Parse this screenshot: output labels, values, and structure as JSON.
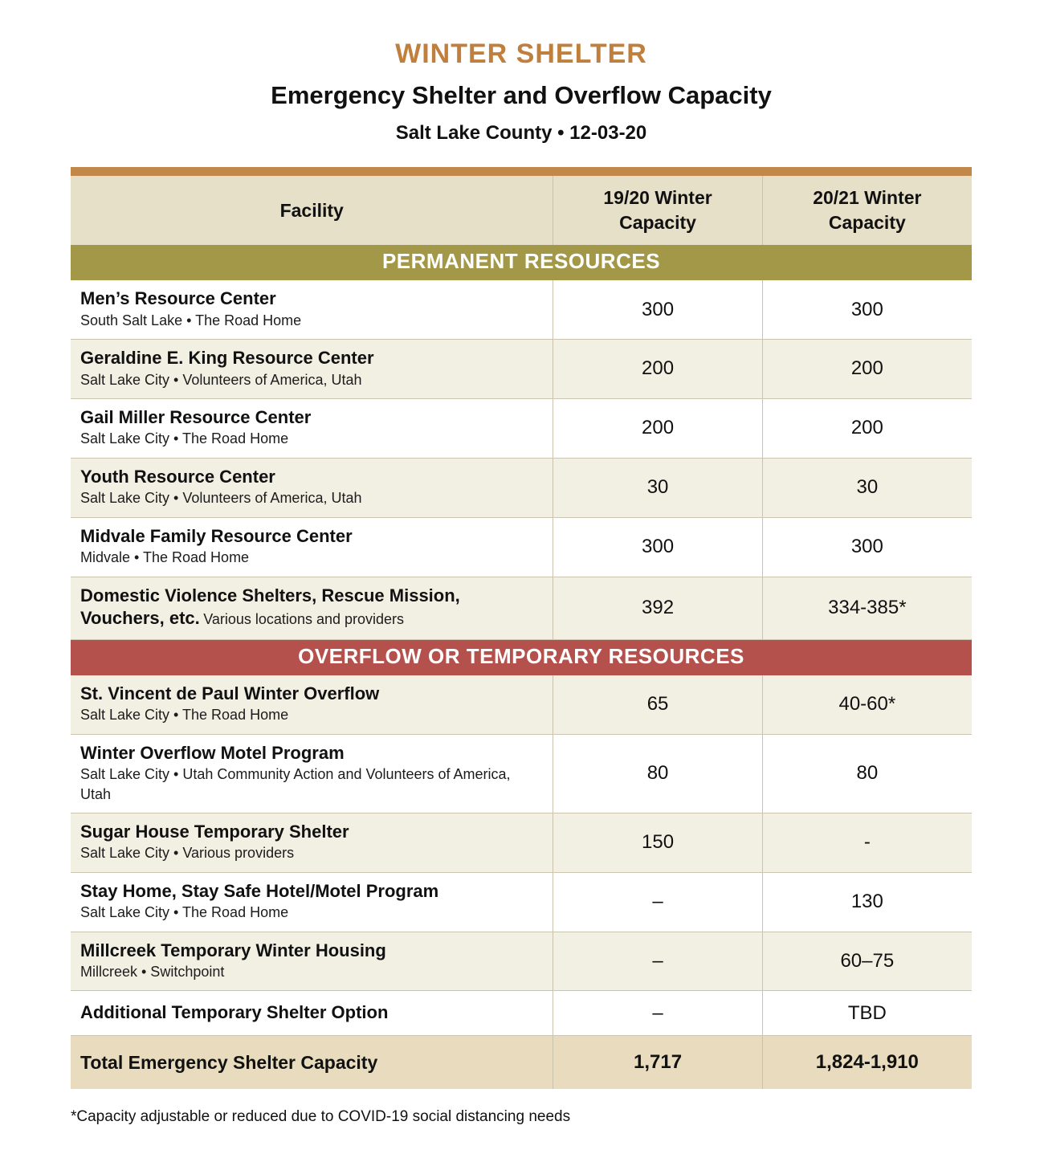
{
  "header": {
    "title": "WINTER SHELTER",
    "subtitle": "Emergency Shelter and Overflow Capacity",
    "date_line": "Salt Lake County  •  12-03-20"
  },
  "colors": {
    "accent_bar": "#c2884a",
    "title": "#c07f3d",
    "permanent_section": "#a29847",
    "overflow_section": "#b5514d",
    "header_beige": "#e7e0c9",
    "total_tan": "#e9dcbe"
  },
  "table": {
    "columns": [
      "Facility",
      "19/20 Winter Capacity",
      "20/21 Winter Capacity"
    ],
    "sections": [
      {
        "label": "PERMANENT RESOURCES",
        "color": "#a29847",
        "rows": [
          {
            "name": "Men’s Resource Center",
            "detail": "South Salt Lake • The Road Home",
            "cap1920": "300",
            "cap2021": "300"
          },
          {
            "name": "Geraldine E. King Resource Center",
            "detail": "Salt Lake City • Volunteers of America, Utah",
            "cap1920": "200",
            "cap2021": "200"
          },
          {
            "name": "Gail Miller Resource Center",
            "detail": "Salt Lake City • The Road Home",
            "cap1920": "200",
            "cap2021": "200"
          },
          {
            "name": "Youth Resource Center",
            "detail": "Salt Lake City • Volunteers of America, Utah",
            "cap1920": "30",
            "cap2021": "30"
          },
          {
            "name": "Midvale Family Resource Center",
            "detail": "Midvale • The Road Home",
            "cap1920": "300",
            "cap2021": "300"
          },
          {
            "name": "Domestic Violence Shelters, Rescue Mission, Vouchers, etc.",
            "detail": "Various locations and providers",
            "inline_detail": true,
            "cap1920": "392",
            "cap2021": "334-385*"
          }
        ]
      },
      {
        "label": "OVERFLOW OR TEMPORARY RESOURCES",
        "color": "#b5514d",
        "rows": [
          {
            "name": "St. Vincent de Paul Winter Overflow",
            "detail": "Salt Lake City • The Road Home",
            "cap1920": "65",
            "cap2021": "40-60*"
          },
          {
            "name": "Winter Overflow Motel Program",
            "detail": "Salt Lake City • Utah Community Action and Volunteers of America, Utah",
            "cap1920": "80",
            "cap2021": "80"
          },
          {
            "name": "Sugar House Temporary Shelter",
            "detail": "Salt Lake City • Various providers",
            "cap1920": "150",
            "cap2021": "-"
          },
          {
            "name": "Stay Home, Stay Safe Hotel/Motel Program",
            "detail": "Salt Lake City • The Road Home",
            "cap1920": "–",
            "cap2021": "130"
          },
          {
            "name": "Millcreek Temporary Winter Housing",
            "detail": "Millcreek • Switchpoint",
            "cap1920": "–",
            "cap2021": "60–75"
          },
          {
            "name": "Additional Temporary Shelter Option",
            "detail": "",
            "cap1920": "–",
            "cap2021": "TBD"
          }
        ]
      }
    ],
    "total": {
      "label": "Total Emergency Shelter Capacity",
      "cap1920": "1,717",
      "cap2021": "1,824-1,910"
    }
  },
  "footnote": "*Capacity adjustable or reduced due to COVID-19 social distancing needs"
}
